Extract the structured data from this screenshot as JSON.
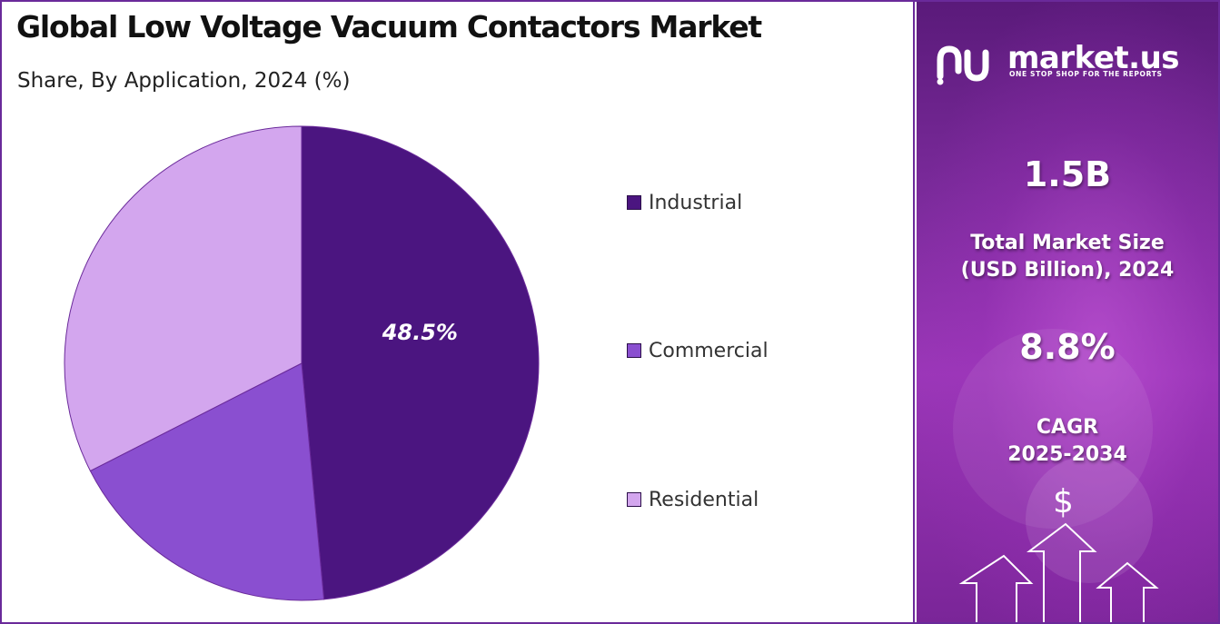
{
  "title": "Global Low Voltage Vacuum Contactors Market",
  "subtitle": "Share, By Application, 2024 (%)",
  "chart_data": {
    "type": "pie",
    "title": "Global Low Voltage Vacuum Contactors Market",
    "subtitle": "Share, By Application, 2024 (%)",
    "categories": [
      "Industrial",
      "Commercial",
      "Residential"
    ],
    "values": [
      48.5,
      19.0,
      32.5
    ],
    "colors": [
      "#4b1580",
      "#8a4fd0",
      "#d3a6ee"
    ],
    "data_labels": [
      "48.5%",
      "",
      ""
    ],
    "legend_position": "right"
  },
  "panel": {
    "brand": "market.us",
    "tagline": "ONE STOP SHOP FOR THE REPORTS",
    "market_size_value": "1.5B",
    "market_size_label_line1": "Total Market Size",
    "market_size_label_line2": "(USD Billion), 2024",
    "cagr_value": "8.8%",
    "cagr_label_line1": "CAGR",
    "cagr_label_line2": "2025-2034",
    "dollar_symbol": "$",
    "icons": [
      "market-us-logo-icon",
      "dollar-icon",
      "up-arrow-icon"
    ]
  }
}
